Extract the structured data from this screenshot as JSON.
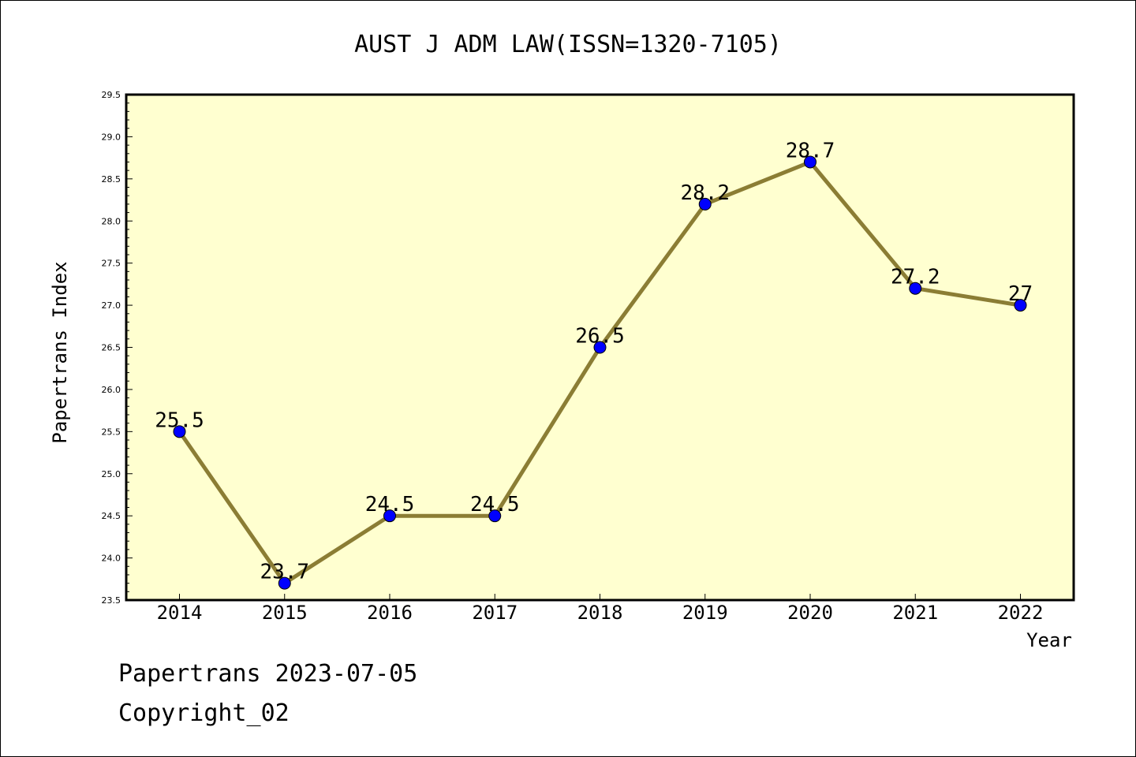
{
  "chart_data": {
    "type": "line",
    "title": "AUST J ADM LAW(ISSN=1320-7105)",
    "xlabel": "Year",
    "ylabel": "Papertrans Index",
    "categories": [
      "2014",
      "2015",
      "2016",
      "2017",
      "2018",
      "2019",
      "2020",
      "2021",
      "2022"
    ],
    "series": [
      {
        "values": [
          25.5,
          23.7,
          24.5,
          24.5,
          26.5,
          28.2,
          28.7,
          27.2,
          27.0
        ]
      }
    ],
    "data_labels": [
      "25.5",
      "23.7",
      "24.5",
      "24.5",
      "26.5",
      "28.2",
      "28.7",
      "27.2",
      "27"
    ],
    "yticks": [
      "23.5",
      "24.0",
      "24.5",
      "25.0",
      "25.5",
      "26.0",
      "26.5",
      "27.0",
      "27.5",
      "28.0",
      "28.5",
      "29.0",
      "29.5"
    ],
    "ylim": [
      23.5,
      29.5
    ],
    "grid": false,
    "colors": {
      "plot_background": "#ffffd0",
      "line": "#8b7d34",
      "marker": "#0000ff"
    }
  },
  "footer": {
    "line1": "Papertrans 2023-07-05",
    "line2": "Copyright_02"
  }
}
